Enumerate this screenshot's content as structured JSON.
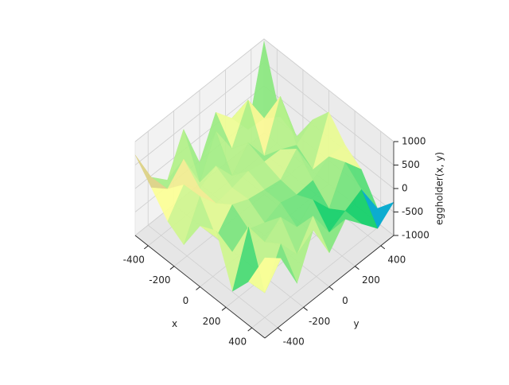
{
  "chart_data": {
    "type": "surface",
    "x": [
      -500,
      -375,
      -250,
      -125,
      0,
      125,
      250,
      375,
      500
    ],
    "y": [
      -500,
      -375,
      -250,
      -125,
      0,
      125,
      250,
      375,
      500
    ],
    "z": [
      [
        715,
        -32,
        -367,
        443,
        -540,
        259,
        -141,
        -653,
        950
      ],
      [
        290,
        -10,
        354,
        -418,
        403,
        -247,
        523,
        -145,
        -385
      ],
      [
        -152,
        354,
        -1,
        208,
        -276,
        155,
        -400,
        599,
        -533
      ],
      [
        -378,
        383,
        -43,
        17,
        99,
        24,
        11,
        -169,
        100
      ],
      [
        296,
        -221,
        202,
        44,
        -25,
        -89,
        297,
        -419,
        539
      ],
      [
        469,
        -264,
        -49,
        -180,
        -29,
        -133,
        -98,
        133,
        111
      ],
      [
        -550,
        548,
        -50,
        211,
        -273,
        32,
        -431,
        286,
        -138
      ],
      [
        -72,
        -583,
        187,
        -313,
        235,
        -392,
        -203,
        -22,
        -697
      ],
      [
        710,
        423,
        -380,
        483,
        -280,
        166,
        -204,
        -579,
        -293
      ]
    ],
    "colormap": "terrain",
    "xlabel": "x",
    "ylabel": "y",
    "zlabel": "eggholder(x, y)",
    "xlim": [
      -500,
      500
    ],
    "ylim": [
      -500,
      500
    ],
    "zlim": [
      -1000,
      1000
    ],
    "xticks": [
      -400,
      -200,
      0,
      200,
      400
    ],
    "yticks": [
      -400,
      -200,
      0,
      200,
      400
    ],
    "zticks": [
      -1000,
      -500,
      0,
      500,
      1000
    ],
    "grid": true
  }
}
